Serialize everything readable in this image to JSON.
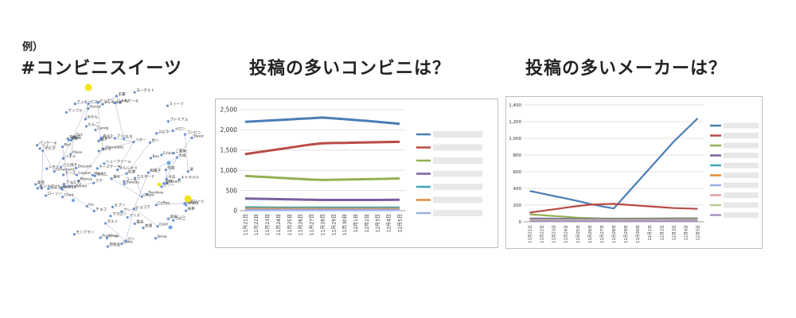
{
  "example_label": "例）",
  "headings": {
    "network": "#コンビニスイーツ",
    "chart1": "投稿の多いコンビニは？",
    "chart2": "投稿の多いメーカーは？"
  },
  "network_words": [
    "Ornament",
    "Pandora",
    "seven-eleven",
    "Bakery",
    "Cafe",
    "Pudding",
    "Chocolate",
    "Dessert",
    "Cake",
    "Roll",
    "Sweets",
    "Sweet Cookie",
    "Coffee",
    "Box",
    "Chair",
    "Candy",
    "Drink",
    "Money",
    "Place",
    "Gold",
    "Ice",
    "Snack",
    "Latte",
    "Cookie",
    "Tart",
    "Jelly",
    "Crepe",
    "Mochi",
    "Cream",
    "Donut",
    "Eclair",
    "Biscuit",
    "ローソン",
    "ファミマ",
    "セブン",
    "プリン",
    "ケーキ",
    "スイーツ",
    "コンビニ",
    "ロールケーキ",
    "シュークリーム",
    "チョコ",
    "アイス",
    "パフェ",
    "新商品",
    "限定",
    "季節",
    "抹茶",
    "いちご",
    "おやつ",
    "美味しい",
    "甘い",
    "和菓子",
    "ドーナツ",
    "クッキー",
    "パン",
    "コーヒー",
    "紅茶",
    "ミルク",
    "バター",
    "チーズケーキ",
    "タルト",
    "ゼリー",
    "クレープ",
    "もち",
    "まんじゅう",
    "カフェ",
    "ラテ",
    "チーズ",
    "栗",
    "かぼちゃ",
    "モンブラン",
    "ティラミス",
    "マカロン",
    "生クリーム",
    "カスタード",
    "ショコラ",
    "キャラメル",
    "ナッツ",
    "フルーツ",
    "バナナ",
    "りんご",
    "みかん",
    "メロン",
    "桃",
    "ぶどう",
    "レモン",
    "ヨーグルト",
    "パンケーキ",
    "ワッフル",
    "あんこ",
    "大福",
    "だんご",
    "羊羹",
    "どら焼き",
    "プレミアム",
    "新作",
    "発売",
    "購入",
    "食べた",
    "最高",
    "幸せ",
    "ご褒美",
    "今日",
    "休憩"
  ],
  "chart1": {
    "chart_data": {
      "type": "line",
      "categories": [
        "11月21日",
        "11月22日",
        "11月23日",
        "11月24日",
        "11月25日",
        "11月26日",
        "11月27日",
        "11月28日",
        "11月29日",
        "11月30日",
        "12月1日",
        "12月2日",
        "12月3日",
        "12月4日",
        "12月5日"
      ],
      "ylim": [
        0,
        2500
      ],
      "yticks": [
        "0",
        "500",
        "1,000",
        "1,500",
        "2,000",
        "2,500"
      ],
      "yticks_values": [
        0,
        500,
        1000,
        1500,
        2000,
        2500
      ],
      "grid": true,
      "legend_position": "right",
      "series": [
        {
          "color": "#4a7db5",
          "values": [
            2200,
            2215,
            2230,
            2245,
            2260,
            2275,
            2290,
            2305,
            2285,
            2265,
            2245,
            2225,
            2200,
            2175,
            2150
          ]
        },
        {
          "color": "#b94a45",
          "values": [
            1400,
            1440,
            1480,
            1520,
            1560,
            1600,
            1640,
            1670,
            1675,
            1680,
            1685,
            1690,
            1695,
            1700,
            1705
          ]
        },
        {
          "color": "#93b150",
          "values": [
            860,
            845,
            830,
            815,
            800,
            785,
            770,
            760,
            765,
            770,
            775,
            780,
            785,
            790,
            800
          ]
        },
        {
          "color": "#7b5f9e",
          "values": [
            300,
            295,
            290,
            285,
            280,
            275,
            270,
            265,
            265,
            265,
            265,
            265,
            265,
            268,
            272
          ]
        },
        {
          "color": "#3ba6bd",
          "values": [
            80,
            78,
            76,
            75,
            74,
            73,
            72,
            72,
            72,
            72,
            72,
            72,
            72,
            72,
            72
          ]
        },
        {
          "color": "#e38b3a",
          "values": [
            50,
            49,
            48,
            47,
            46,
            45,
            45,
            45,
            45,
            45,
            45,
            45,
            45,
            45,
            45
          ]
        },
        {
          "color": "#9aaee0",
          "values": [
            20,
            20,
            20,
            20,
            20,
            20,
            20,
            20,
            20,
            20,
            20,
            20,
            20,
            20,
            20
          ]
        }
      ]
    }
  },
  "chart2": {
    "chart_data": {
      "type": "line",
      "categories": [
        "11月21日",
        "11月22日",
        "11月23日",
        "11月24日",
        "11月25日",
        "11月26日",
        "11月27日",
        "11月28日",
        "11月29日",
        "11月30日",
        "12月1日",
        "12月2日",
        "12月3日",
        "12月4日",
        "12月5日"
      ],
      "ylim": [
        0,
        1400
      ],
      "yticks": [
        "0",
        "200",
        "400",
        "600",
        "800",
        "1,000",
        "1,200",
        "1,400"
      ],
      "yticks_values": [
        0,
        200,
        400,
        600,
        800,
        1000,
        1200,
        1400
      ],
      "grid": true,
      "legend_position": "right",
      "series": [
        {
          "color": "#4a7db5",
          "values": [
            370,
            340,
            310,
            280,
            250,
            215,
            185,
            160,
            320,
            480,
            640,
            800,
            960,
            1100,
            1240
          ]
        },
        {
          "color": "#b94a45",
          "values": [
            110,
            130,
            150,
            170,
            190,
            205,
            210,
            215,
            205,
            195,
            185,
            175,
            165,
            160,
            155
          ]
        },
        {
          "color": "#93b150",
          "values": [
            90,
            80,
            70,
            60,
            50,
            45,
            40,
            38,
            38,
            39,
            40,
            41,
            42,
            42,
            42
          ]
        },
        {
          "color": "#7b5f9e",
          "values": [
            40,
            39,
            38,
            37,
            36,
            35,
            35,
            35,
            35,
            35,
            35,
            35,
            35,
            35,
            35
          ]
        },
        {
          "color": "#3ba6bd",
          "values": [
            30,
            30,
            30,
            30,
            30,
            30,
            30,
            30,
            30,
            30,
            30,
            30,
            30,
            30,
            30
          ]
        },
        {
          "color": "#e38b3a",
          "values": [
            25,
            25,
            25,
            25,
            25,
            25,
            25,
            25,
            25,
            25,
            25,
            25,
            25,
            25,
            25
          ]
        },
        {
          "color": "#9aaee0",
          "values": [
            20,
            20,
            20,
            20,
            20,
            20,
            20,
            20,
            20,
            20,
            20,
            20,
            20,
            20,
            20
          ]
        },
        {
          "color": "#e7a0a0",
          "values": [
            15,
            15,
            15,
            15,
            15,
            15,
            15,
            15,
            15,
            15,
            15,
            15,
            15,
            15,
            15
          ]
        },
        {
          "color": "#b6cc8a",
          "values": [
            10,
            10,
            10,
            10,
            10,
            10,
            10,
            10,
            10,
            10,
            10,
            10,
            10,
            10,
            10
          ]
        },
        {
          "color": "#a493c2",
          "values": [
            8,
            8,
            8,
            8,
            8,
            8,
            8,
            8,
            8,
            8,
            8,
            8,
            8,
            8,
            8
          ]
        }
      ]
    }
  }
}
